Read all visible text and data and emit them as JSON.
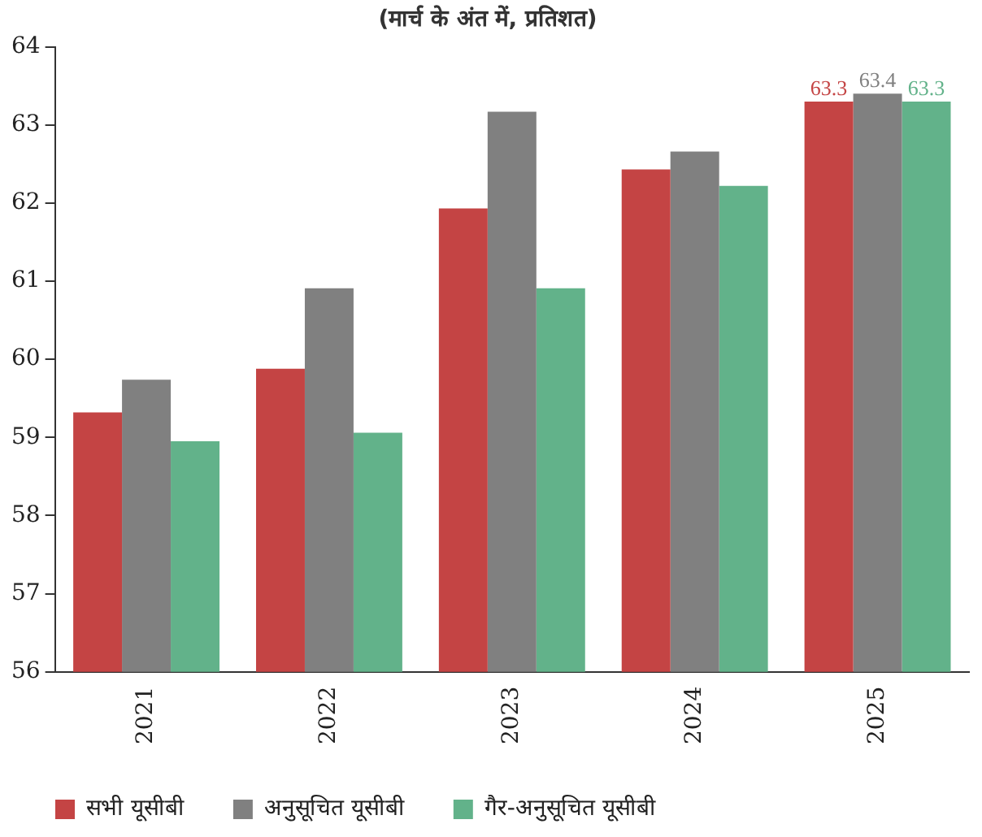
{
  "chart_data": {
    "type": "bar",
    "subtitle": "(मार्च के अंत में, प्रतिशत)",
    "categories": [
      "2021",
      "2022",
      "2023",
      "2024",
      "2025"
    ],
    "series": [
      {
        "name": "सभी यूसीबी",
        "color": "#c44444",
        "values": [
          59.32,
          59.88,
          61.93,
          62.43,
          63.3
        ],
        "value_labels": [
          null,
          null,
          null,
          null,
          "63.3"
        ]
      },
      {
        "name": "अनुसूचित यूसीबी",
        "color": "#808080",
        "values": [
          59.74,
          60.91,
          63.17,
          62.66,
          63.4
        ],
        "value_labels": [
          null,
          null,
          null,
          null,
          "63.4"
        ]
      },
      {
        "name": "गैर-अनुसूचित यूसीबी",
        "color": "#62b28a",
        "values": [
          58.95,
          59.06,
          60.91,
          62.22,
          63.3
        ],
        "value_labels": [
          null,
          null,
          null,
          null,
          "63.3"
        ]
      }
    ],
    "ylim": [
      56,
      64
    ],
    "yticks": [
      56,
      57,
      58,
      59,
      60,
      61,
      62,
      63,
      64
    ],
    "grid": false,
    "legend": "bottom"
  }
}
